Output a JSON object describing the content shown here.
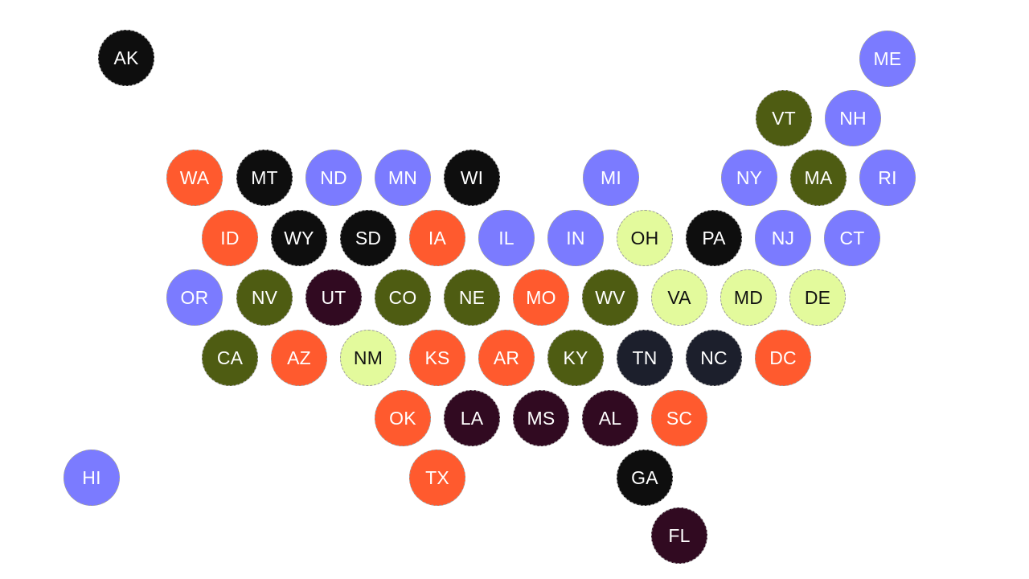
{
  "colors": {
    "periwinkle": "#7b7bff",
    "orange": "#ff5a2e",
    "olive": "#4e5c12",
    "black": "#0e0e0e",
    "navy": "#1c1f2c",
    "plum": "#310a21",
    "lime": "#e3fa9c"
  },
  "states": [
    {
      "abbr": "AK",
      "color": "black"
    },
    {
      "abbr": "ME",
      "color": "periwinkle"
    },
    {
      "abbr": "VT",
      "color": "olive"
    },
    {
      "abbr": "NH",
      "color": "periwinkle"
    },
    {
      "abbr": "WA",
      "color": "orange"
    },
    {
      "abbr": "MT",
      "color": "black"
    },
    {
      "abbr": "ND",
      "color": "periwinkle"
    },
    {
      "abbr": "MN",
      "color": "periwinkle"
    },
    {
      "abbr": "WI",
      "color": "black"
    },
    {
      "abbr": "MI",
      "color": "periwinkle"
    },
    {
      "abbr": "NY",
      "color": "periwinkle"
    },
    {
      "abbr": "MA",
      "color": "olive"
    },
    {
      "abbr": "RI",
      "color": "periwinkle"
    },
    {
      "abbr": "ID",
      "color": "orange"
    },
    {
      "abbr": "WY",
      "color": "black"
    },
    {
      "abbr": "SD",
      "color": "black"
    },
    {
      "abbr": "IA",
      "color": "orange"
    },
    {
      "abbr": "IL",
      "color": "periwinkle"
    },
    {
      "abbr": "IN",
      "color": "periwinkle"
    },
    {
      "abbr": "OH",
      "color": "lime"
    },
    {
      "abbr": "PA",
      "color": "black"
    },
    {
      "abbr": "NJ",
      "color": "periwinkle"
    },
    {
      "abbr": "CT",
      "color": "periwinkle"
    },
    {
      "abbr": "OR",
      "color": "periwinkle"
    },
    {
      "abbr": "NV",
      "color": "olive"
    },
    {
      "abbr": "UT",
      "color": "plum"
    },
    {
      "abbr": "CO",
      "color": "olive"
    },
    {
      "abbr": "NE",
      "color": "olive"
    },
    {
      "abbr": "MO",
      "color": "orange"
    },
    {
      "abbr": "WV",
      "color": "olive"
    },
    {
      "abbr": "VA",
      "color": "lime"
    },
    {
      "abbr": "MD",
      "color": "lime"
    },
    {
      "abbr": "DE",
      "color": "lime"
    },
    {
      "abbr": "CA",
      "color": "olive"
    },
    {
      "abbr": "AZ",
      "color": "orange"
    },
    {
      "abbr": "NM",
      "color": "lime"
    },
    {
      "abbr": "KS",
      "color": "orange"
    },
    {
      "abbr": "AR",
      "color": "orange"
    },
    {
      "abbr": "KY",
      "color": "olive"
    },
    {
      "abbr": "TN",
      "color": "navy"
    },
    {
      "abbr": "NC",
      "color": "navy"
    },
    {
      "abbr": "DC",
      "color": "orange"
    },
    {
      "abbr": "OK",
      "color": "orange"
    },
    {
      "abbr": "LA",
      "color": "plum"
    },
    {
      "abbr": "MS",
      "color": "plum"
    },
    {
      "abbr": "AL",
      "color": "plum"
    },
    {
      "abbr": "SC",
      "color": "orange"
    },
    {
      "abbr": "HI",
      "color": "periwinkle"
    },
    {
      "abbr": "TX",
      "color": "orange"
    },
    {
      "abbr": "GA",
      "color": "black"
    },
    {
      "abbr": "FL",
      "color": "plum"
    }
  ]
}
